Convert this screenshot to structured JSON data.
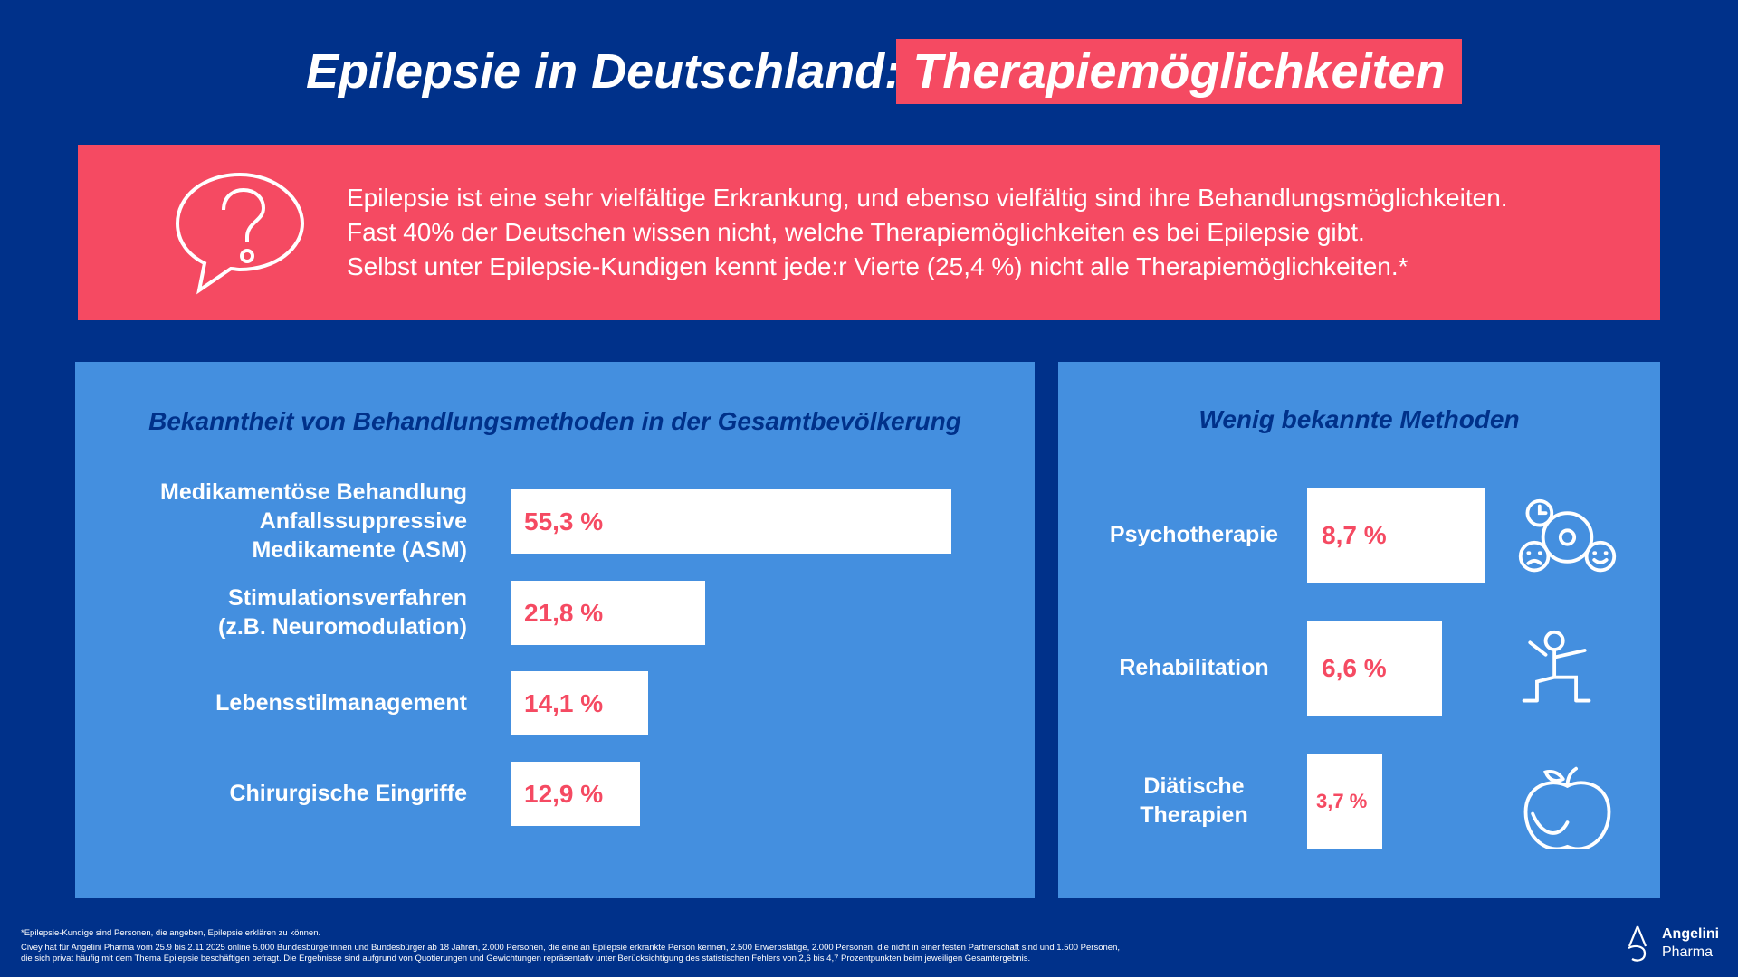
{
  "title": {
    "part1": "Epilepsie in Deutschland:",
    "part2": "Therapiemöglichkeiten"
  },
  "banner": {
    "lines": [
      "Epilepsie ist eine sehr vielfältige Erkrankung, und ebenso vielfältig sind ihre Behandlungsmöglichkeiten.",
      "Fast 40% der Deutschen wissen nicht, welche Therapiemöglichkeiten es bei Epilepsie gibt.",
      "Selbst unter Epilepsie-Kundigen kennt jede:r Vierte (25,4 %) nicht alle Therapiemöglichkeiten.*"
    ]
  },
  "colors": {
    "background": "#00318a",
    "accent": "#f54a62",
    "panel": "#448fdf"
  },
  "chart_data": [
    {
      "type": "bar",
      "orientation": "horizontal",
      "title": "Bekanntheit von Behandlungsmethoden in der Gesamtbevölkerung",
      "categories": [
        "Medikamentöse Behandlung\nAnfallssuppressive\nMedikamente (ASM)",
        "Stimulationsverfahren\n(z.B. Neuromodulation)",
        "Lebensstilmanagement",
        "Chirurgische Eingriffe"
      ],
      "values": [
        55.3,
        21.8,
        14.1,
        12.9
      ],
      "labels": [
        "55,3 %",
        "21,8 %",
        "14,1 %",
        "12,9 %"
      ],
      "unit": "%"
    },
    {
      "type": "bar",
      "orientation": "horizontal",
      "title": "Wenig bekannte Methoden",
      "categories": [
        "Psychotherapie",
        "Rehabilitation",
        "Diätische\nTherapien"
      ],
      "values": [
        8.7,
        6.6,
        3.7
      ],
      "labels": [
        "8,7 %",
        "6,6 %",
        "3,7 %"
      ],
      "unit": "%",
      "icons": [
        "psychotherapy-icon",
        "rehabilitation-icon",
        "apple-icon"
      ]
    }
  ],
  "footnotes": [
    "*Epilepsie-Kundige sind Personen, die angeben, Epilepsie erklären zu können.",
    "Civey hat für Angelini Pharma vom 25.9 bis 2.11.2025 online 5.000 Bundesbürgerinnen und Bundesbürger ab 18 Jahren, 2.000 Personen, die eine an Epilepsie erkrankte Person kennen, 2.500 Erwerbstätige, 2.000 Personen, die nicht in einer festen Partnerschaft sind und 1.500 Personen,",
    "die sich privat häufig mit dem Thema Epilepsie beschäftigen befragt. Die Ergebnisse sind aufgrund von Quotierungen und Gewichtungen repräsentativ unter Berücksichtigung des statistischen Fehlers von 2,6 bis 4,7 Prozentpunkten beim jeweiligen Gesamtergebnis."
  ],
  "logo": {
    "line1": "Angelini",
    "line2": "Pharma"
  }
}
